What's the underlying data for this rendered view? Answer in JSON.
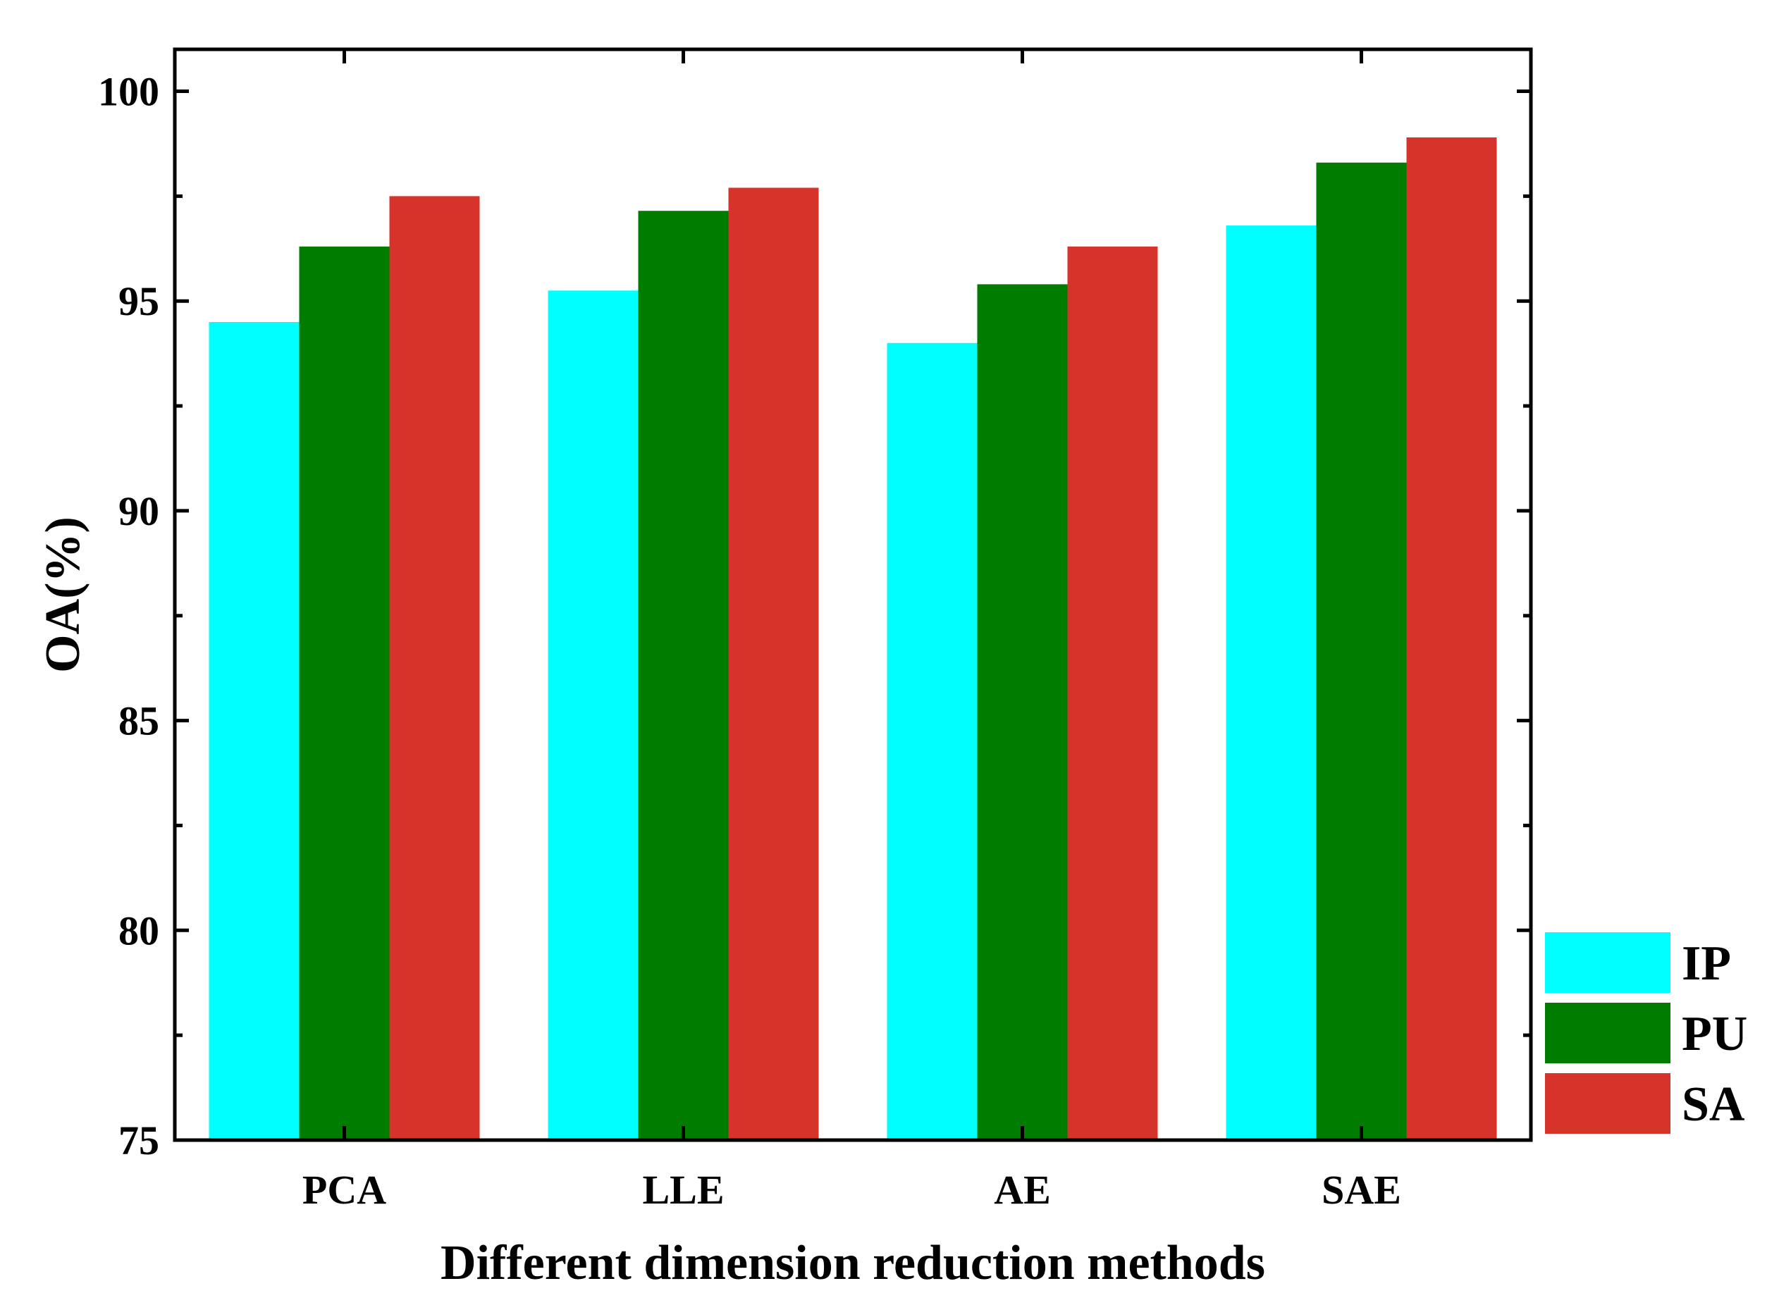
{
  "chart_data": {
    "type": "bar",
    "title": "",
    "xlabel": "Different dimension reduction methods",
    "ylabel": "OA(%)",
    "ylim": [
      75,
      101
    ],
    "yticks": [
      75,
      80,
      85,
      90,
      95,
      100
    ],
    "categories": [
      "PCA",
      "LLE",
      "AE",
      "SAE"
    ],
    "series": [
      {
        "name": "IP",
        "color": "#00FFFF",
        "values": [
          94.5,
          95.25,
          94.0,
          96.8
        ]
      },
      {
        "name": "PU",
        "color": "#007D00",
        "values": [
          96.3,
          97.15,
          95.4,
          98.3
        ]
      },
      {
        "name": "SA",
        "color": "#D6332A",
        "values": [
          97.5,
          97.7,
          96.3,
          98.9
        ]
      }
    ],
    "legend_position": "bottom-right outside",
    "grid": false
  }
}
